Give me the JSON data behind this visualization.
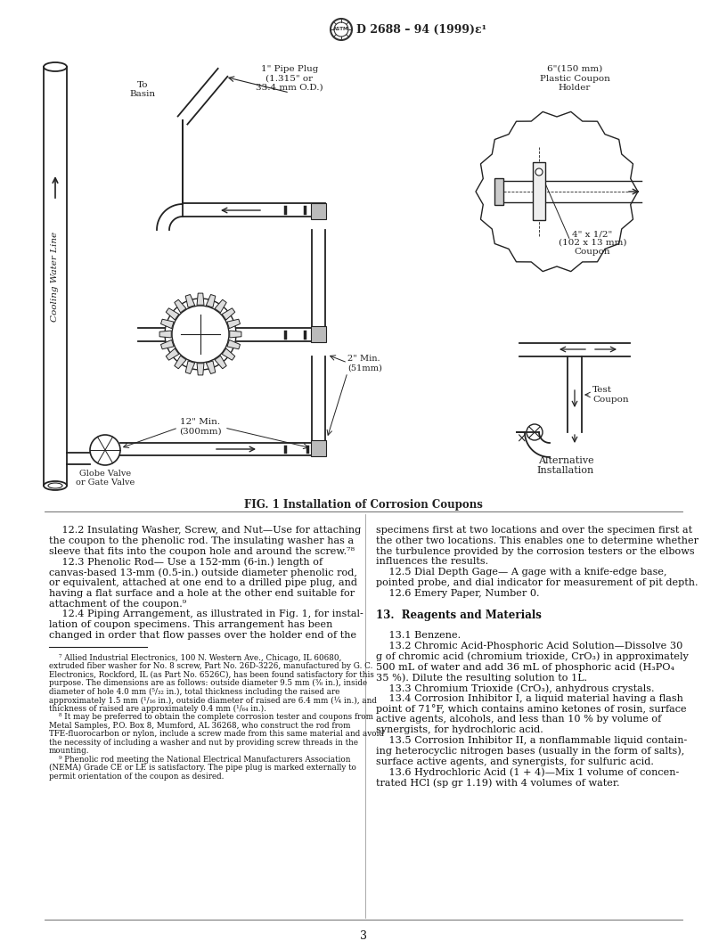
{
  "page_width": 8.16,
  "page_height": 10.56,
  "dpi": 100,
  "bg_color": "#ffffff",
  "header_text": "D 2688 – 94 (1999)ε¹",
  "fig_caption": "FIG. 1 Installation of Corrosion Coupons",
  "page_number": "3",
  "footnotes": [
    "    ⁷ Allied Industrial Electronics, 100 N. Western Ave., Chicago, IL 60680,",
    "extruded fiber washer for No. 8 screw, Part No. 26D-3226, manufactured by G. C.",
    "Electronics, Rockford, IL (as Part No. 6526C), has been found satisfactory for this",
    "purpose. The dimensions are as follows: outside diameter 9.5 mm (⅜ in.), inside",
    "diameter of hole 4.0 mm (⁵/₃₂ in.), total thickness including the raised are",
    "approximately 1.5 mm (¹/₁₆ in.), outside diameter of raised are 6.4 mm (¼ in.), and",
    "thickness of raised are approximately 0.4 mm (¹/₆₄ in.).",
    "    ⁸ It may be preferred to obtain the complete corrosion tester and coupons from",
    "Metal Samples, P.O. Box 8, Mumford, AL 36268, who construct the rod from",
    "TFE-fluorocarbon or nylon, include a screw made from this same material and avoid",
    "the necessity of including a washer and nut by providing screw threads in the",
    "mounting.",
    "    ⁹ Phenolic rod meeting the National Electrical Manufacturers Association",
    "(NEMA) Grade CE or LE is satisfactory. The pipe plug is marked externally to",
    "permit orientation of the coupon as desired."
  ],
  "left_col": [
    "    12.2 Insulating Washer, Screw, and Nut—Use for attaching",
    "the coupon to the phenolic rod. The insulating washer has a",
    "sleeve that fits into the coupon hole and around the screw.⁷⁸",
    "    12.3 Phenolic Rod— Use a 152-mm (6-in.) length of",
    "canvas-based 13-mm (0.5-in.) outside diameter phenolic rod,",
    "or equivalent, attached at one end to a drilled pipe plug, and",
    "having a flat surface and a hole at the other end suitable for",
    "attachment of the coupon.⁹",
    "    12.4 Piping Arrangement, as illustrated in Fig. 1, for instal-",
    "lation of coupon specimens. This arrangement has been",
    "changed in order that flow passes over the holder end of the"
  ],
  "right_col": [
    "specimens first at two locations and over the specimen first at",
    "the other two locations. This enables one to determine whether",
    "the turbulence provided by the corrosion testers or the elbows",
    "influences the results.",
    "    12.5 Dial Depth Gage— A gage with a knife-edge base,",
    "pointed probe, and dial indicator for measurement of pit depth.",
    "    12.6 Emery Paper, Number 0.",
    "",
    "13.  Reagents and Materials",
    "",
    "    13.1 Benzene.",
    "    13.2 Chromic Acid-Phosphoric Acid Solution—Dissolve 30",
    "g of chromic acid (chromium trioxide, CrO₃) in approximately",
    "500 mL of water and add 36 mL of phosphoric acid (H₃PO₄",
    "35 %). Dilute the resulting solution to 1L.",
    "    13.3 Chromium Trioxide (CrO₃), anhydrous crystals.",
    "    13.4 Corrosion Inhibitor I, a liquid material having a flash",
    "point of 71°F, which contains amino ketones of rosin, surface",
    "active agents, alcohols, and less than 10 % by volume of",
    "synergists, for hydrochloric acid.",
    "    13.5 Corrosion Inhibitor II, a nonflammable liquid contain-",
    "ing heterocyclic nitrogen bases (usually in the form of salts),",
    "surface active agents, and synergists, for sulfuric acid.",
    "    13.6 Hydrochloric Acid (1 + 4)—Mix 1 volume of concen-",
    "trated HCl (sp gr 1.19) with 4 volumes of water."
  ]
}
